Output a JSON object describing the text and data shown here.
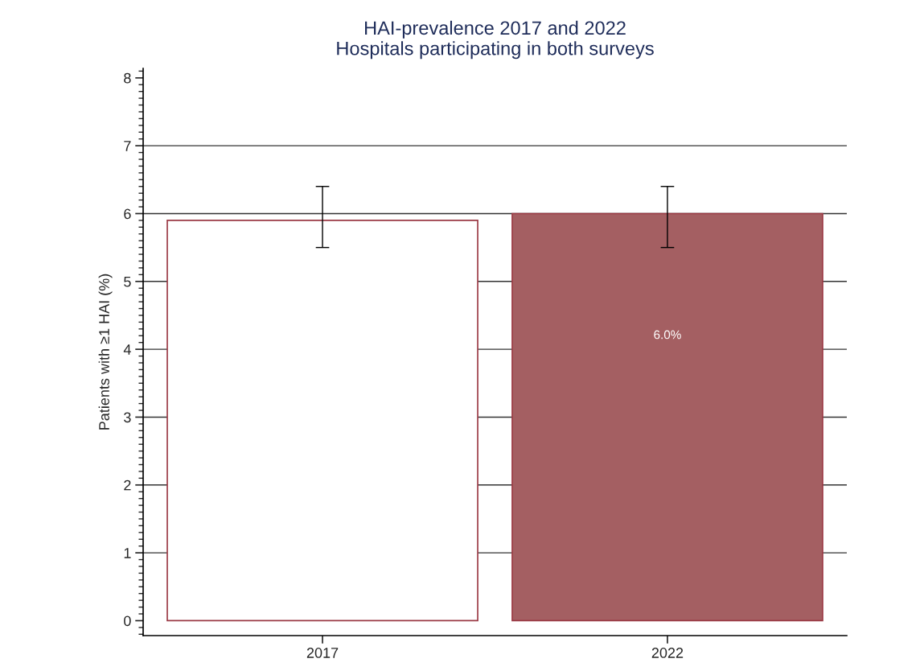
{
  "chart_data": {
    "type": "bar",
    "title": "HAI-prevalence 2017 and 2022\nHospitals participating in both surveys",
    "ylabel": "Patients with ≥1 HAI (%)",
    "categories": [
      "2017",
      "2022"
    ],
    "values": [
      5.9,
      6.0
    ],
    "colors": [
      "#ffffff",
      "#a45f62"
    ],
    "errors": [
      [
        5.5,
        6.4
      ],
      [
        5.5,
        6.4
      ]
    ],
    "value_labels": [
      null,
      "6.0%"
    ],
    "ylim": [
      -0.22,
      8.14
    ],
    "yticks": [
      0,
      1,
      2,
      3,
      4,
      5,
      6,
      7,
      8
    ],
    "grid": "y",
    "legend": false
  }
}
